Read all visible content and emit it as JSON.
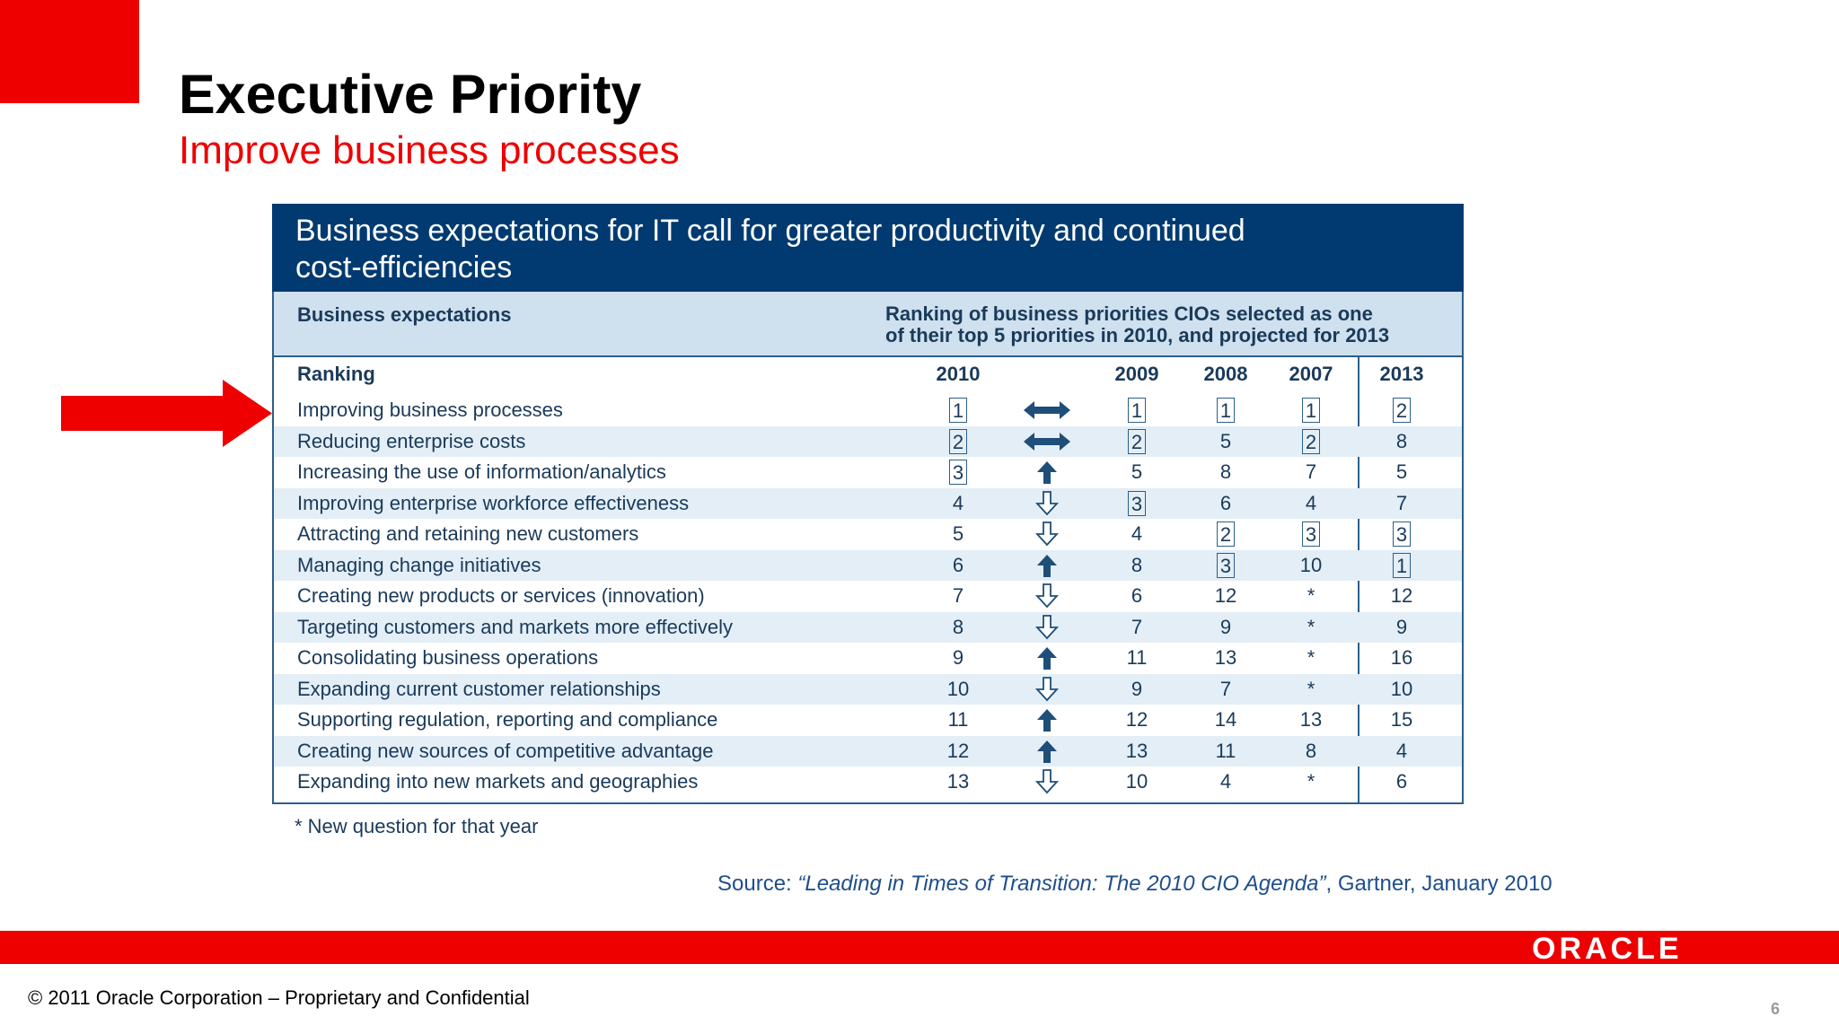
{
  "slide": {
    "title": "Executive Priority",
    "subtitle": "Improve business processes",
    "page_number": "6"
  },
  "panel": {
    "heading_line1": "Business expectations for IT call for greater productivity and continued",
    "heading_line2": "cost-efficiencies",
    "sub_left": "Business expectations",
    "sub_right_line1": "Ranking of business priorities CIOs selected as one",
    "sub_right_line2": "of their top 5 priorities in 2010, and projected for 2013"
  },
  "table": {
    "headers": {
      "label": "Ranking",
      "y2010": "2010",
      "y2009": "2009",
      "y2008": "2008",
      "y2007": "2007",
      "y2013": "2013"
    },
    "rows": [
      {
        "label": "Improving business processes",
        "y2010": "1",
        "trend": "same",
        "y2009": "1",
        "y2008": "1",
        "y2007": "1",
        "y2013": "2"
      },
      {
        "label": "Reducing enterprise costs",
        "y2010": "2",
        "trend": "same",
        "y2009": "2",
        "y2008": "5",
        "y2007": "2",
        "y2013": "8"
      },
      {
        "label": "Increasing the use of information/analytics",
        "y2010": "3",
        "trend": "up",
        "y2009": "5",
        "y2008": "8",
        "y2007": "7",
        "y2013": "5"
      },
      {
        "label": "Improving enterprise workforce effectiveness",
        "y2010": "4",
        "trend": "down",
        "y2009": "3",
        "y2008": "6",
        "y2007": "4",
        "y2013": "7"
      },
      {
        "label": "Attracting and retaining new customers",
        "y2010": "5",
        "trend": "down",
        "y2009": "4",
        "y2008": "2",
        "y2007": "3",
        "y2013": "3"
      },
      {
        "label": "Managing change initiatives",
        "y2010": "6",
        "trend": "up",
        "y2009": "8",
        "y2008": "3",
        "y2007": "10",
        "y2013": "1"
      },
      {
        "label": "Creating new products or services (innovation)",
        "y2010": "7",
        "trend": "down",
        "y2009": "6",
        "y2008": "12",
        "y2007": "*",
        "y2013": "12"
      },
      {
        "label": "Targeting customers and markets more effectively",
        "y2010": "8",
        "trend": "down",
        "y2009": "7",
        "y2008": "9",
        "y2007": "*",
        "y2013": "9"
      },
      {
        "label": "Consolidating business operations",
        "y2010": "9",
        "trend": "up",
        "y2009": "11",
        "y2008": "13",
        "y2007": "*",
        "y2013": "16"
      },
      {
        "label": "Expanding current customer relationships",
        "y2010": "10",
        "trend": "down",
        "y2009": "9",
        "y2008": "7",
        "y2007": "*",
        "y2013": "10"
      },
      {
        "label": "Supporting regulation, reporting and compliance",
        "y2010": "11",
        "trend": "up",
        "y2009": "12",
        "y2008": "14",
        "y2007": "13",
        "y2013": "15"
      },
      {
        "label": "Creating new sources of competitive advantage",
        "y2010": "12",
        "trend": "up",
        "y2009": "13",
        "y2008": "11",
        "y2007": "8",
        "y2013": "4"
      },
      {
        "label": "Expanding into new markets and geographies",
        "y2010": "13",
        "trend": "down",
        "y2009": "10",
        "y2008": "4",
        "y2007": "*",
        "y2013": "6"
      }
    ]
  },
  "footnote": "* New question for that year",
  "source": {
    "prefix": "Source: ",
    "title": "“Leading in Times of Transition: The 2010 CIO Agenda”",
    "suffix": ", Gartner, January 2010"
  },
  "footer": {
    "logo": "ORACLE",
    "copyright": "© 2011 Oracle Corporation – Proprietary and Confidential"
  },
  "colors": {
    "brand_red": "#ee0000",
    "panel_navy": "#003a70",
    "row_shade": "#e3eef6",
    "text_navy": "#1a3a5a"
  }
}
